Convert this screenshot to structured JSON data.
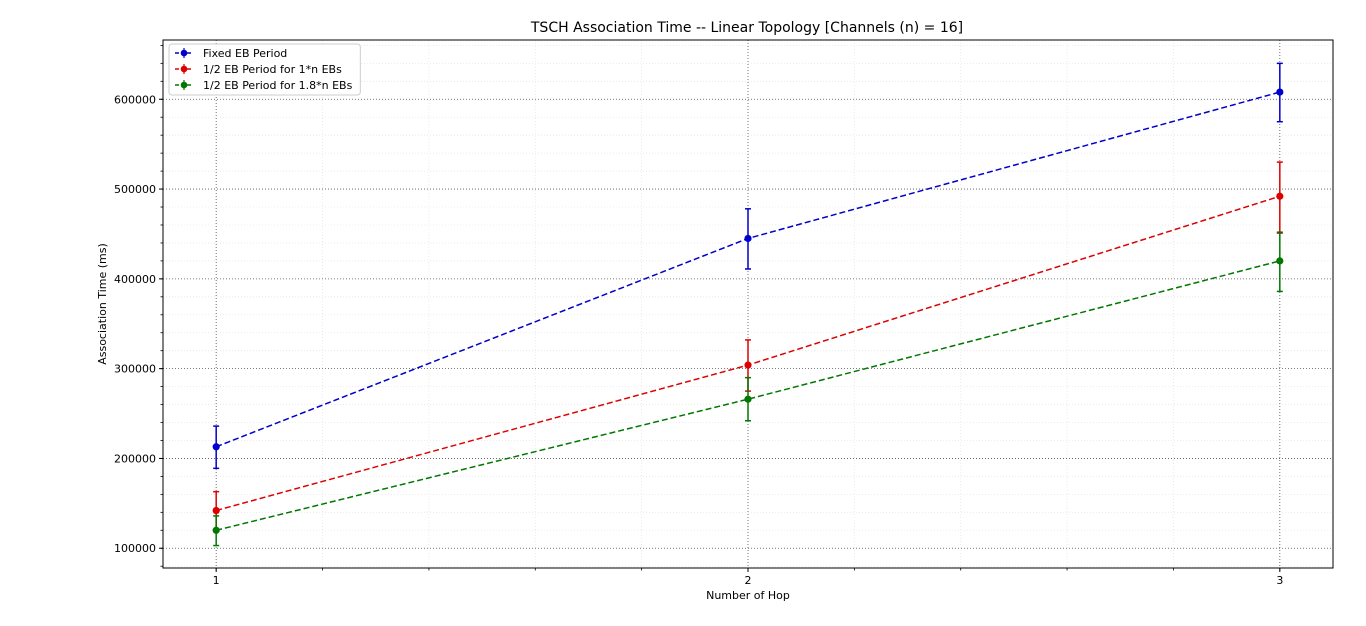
{
  "chart_data": {
    "type": "line",
    "title": "TSCH Association Time -- Linear Topology  [Channels (n) = 16]",
    "xlabel": "Number of Hop",
    "ylabel": "Association Time (ms)",
    "x": [
      1,
      2,
      3
    ],
    "xlim": [
      0.9,
      3.1
    ],
    "ylim": [
      78000,
      666000
    ],
    "xticks": [
      1,
      2,
      3
    ],
    "xtick_labels": [
      "1",
      "2",
      "3"
    ],
    "yticks": [
      100000,
      200000,
      300000,
      400000,
      500000,
      600000
    ],
    "ytick_labels": [
      "100000",
      "200000",
      "300000",
      "400000",
      "500000",
      "600000"
    ],
    "grid": true,
    "legend_position": "top-left",
    "series": [
      {
        "name": "Fixed EB Period",
        "color": "#0000cc",
        "values": [
          213000,
          445000,
          608000
        ],
        "err_low": [
          189000,
          411000,
          575000
        ],
        "err_high": [
          236000,
          478000,
          640000
        ]
      },
      {
        "name": "1/2 EB Period for 1*n EBs",
        "color": "#dd0000",
        "values": [
          142000,
          304000,
          492000
        ],
        "err_low": [
          120000,
          275000,
          451000
        ],
        "err_high": [
          163000,
          332000,
          530000
        ]
      },
      {
        "name": "1/2 EB Period for 1.8*n EBs",
        "color": "#007700",
        "values": [
          120000,
          266000,
          420000
        ],
        "err_low": [
          103000,
          242000,
          386000
        ],
        "err_high": [
          136000,
          290000,
          452000
        ]
      }
    ]
  }
}
